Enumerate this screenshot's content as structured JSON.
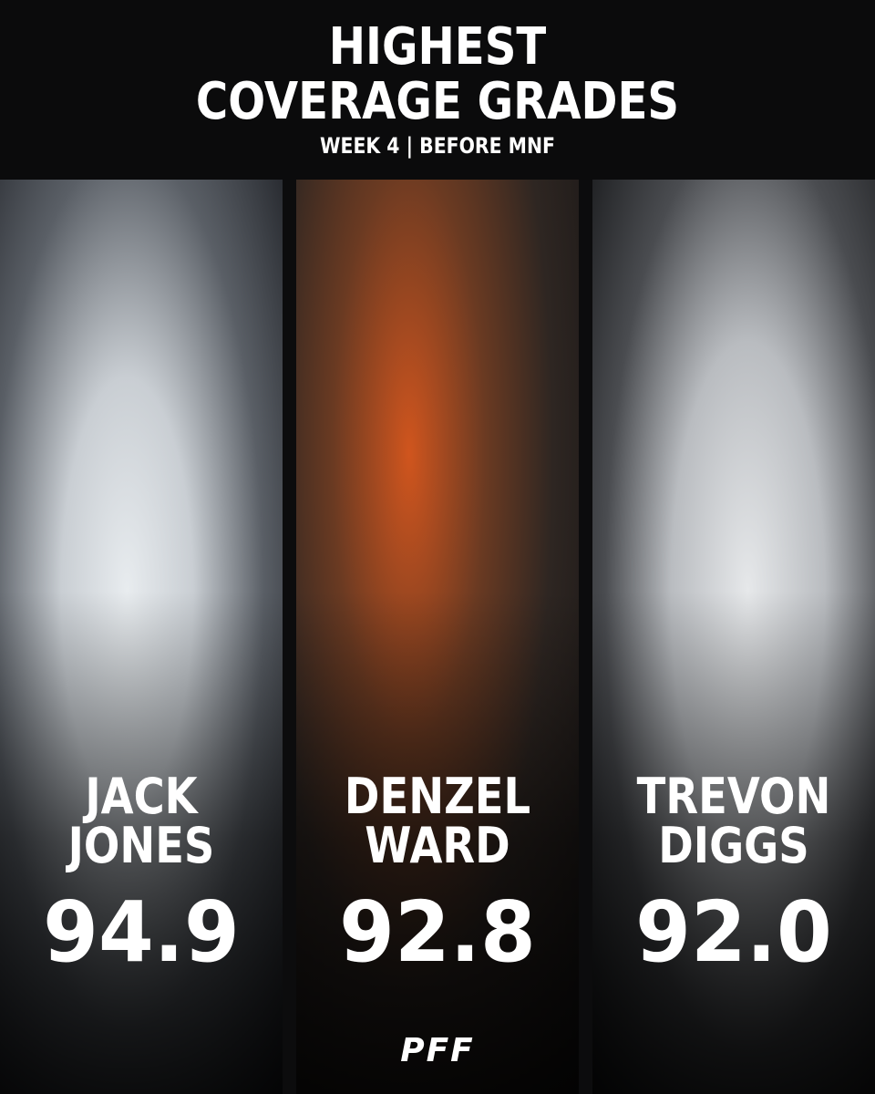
{
  "header": {
    "title_lines": [
      "HIGHEST",
      "COVERAGE GRADES"
    ],
    "subtitle": "WEEK 4 | BEFORE MNF"
  },
  "players": [
    {
      "name_lines": [
        "JACK",
        "JONES"
      ],
      "grade": "94.9"
    },
    {
      "name_lines": [
        "DENZEL",
        "WARD"
      ],
      "grade": "92.8"
    },
    {
      "name_lines": [
        "TREVON",
        "DIGGS"
      ],
      "grade": "92.0"
    }
  ],
  "footer": {
    "logo": "PFF"
  }
}
